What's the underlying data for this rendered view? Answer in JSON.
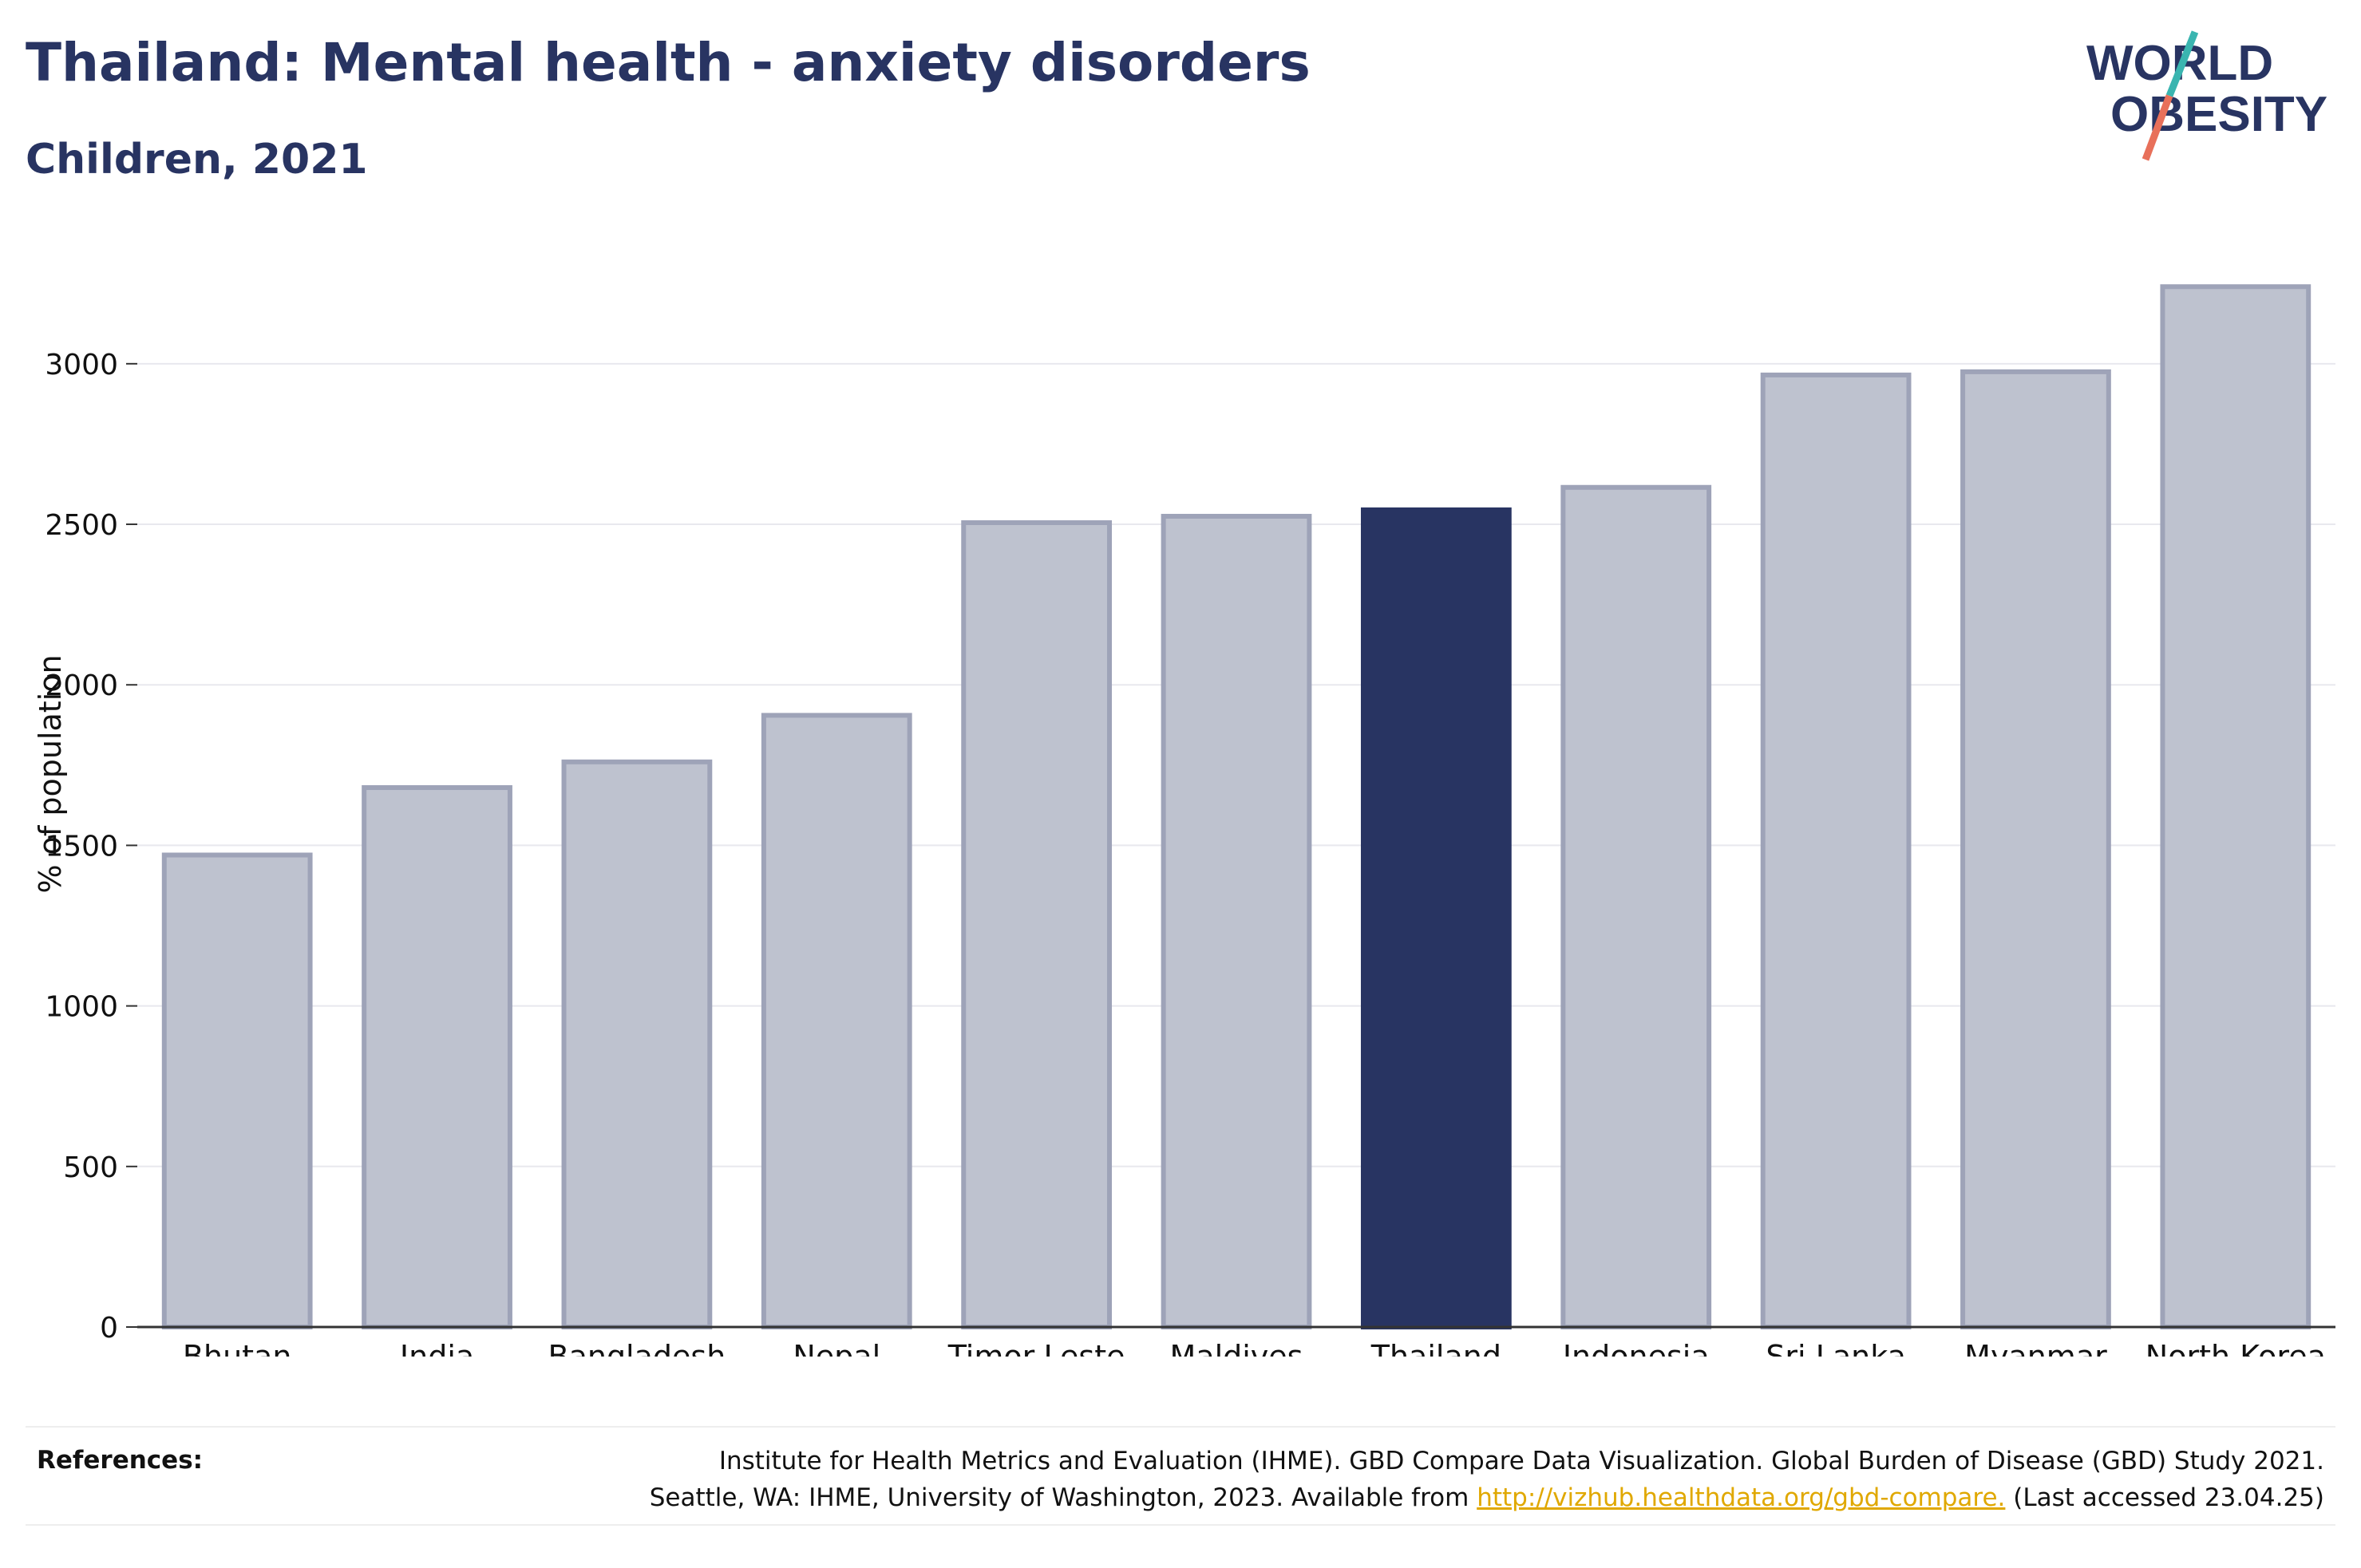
{
  "header": {
    "title": "Thailand: Mental health - anxiety disorders",
    "subtitle": "Children, 2021"
  },
  "logo": {
    "line1": "WORLD",
    "line2": "OBESITY",
    "slash_colors": [
      "#3ab5b0",
      "#e8705a"
    ]
  },
  "references": {
    "label": "References:",
    "line1": "Institute for Health Metrics and Evaluation (IHME). GBD Compare Data Visualization. Global Burden of Disease (GBD) Study 2021.",
    "line2_prefix": "Seattle, WA: IHME, University of Washington, 2023. Available from ",
    "link": "http://vizhub.healthdata.org/gbd-compare.",
    "line2_suffix": " (Last accessed 23.04.25)"
  },
  "colors": {
    "highlight": "#283462",
    "bar_fill": "#bec2cf",
    "bar_stroke": "#9ea3b8",
    "grid": "#e8e8ee",
    "link": "#e0a800"
  },
  "chart_data": {
    "type": "bar",
    "categories": [
      "Bhutan",
      "India",
      "Bangladesh",
      "Nepal",
      "Timor-Leste",
      "Maldives",
      "Thailand",
      "Indonesia",
      "Sri Lanka",
      "Myanmar",
      "North Korea"
    ],
    "values": [
      1470,
      1680,
      1760,
      1905,
      2505,
      2525,
      2545,
      2615,
      2965,
      2975,
      3240
    ],
    "highlight": "Thailand",
    "xlabel": "",
    "ylabel": "% of population",
    "ylim": [
      0,
      3350
    ],
    "yticks": [
      0,
      500,
      1000,
      1500,
      2000,
      2500,
      3000
    ],
    "grid": true
  }
}
